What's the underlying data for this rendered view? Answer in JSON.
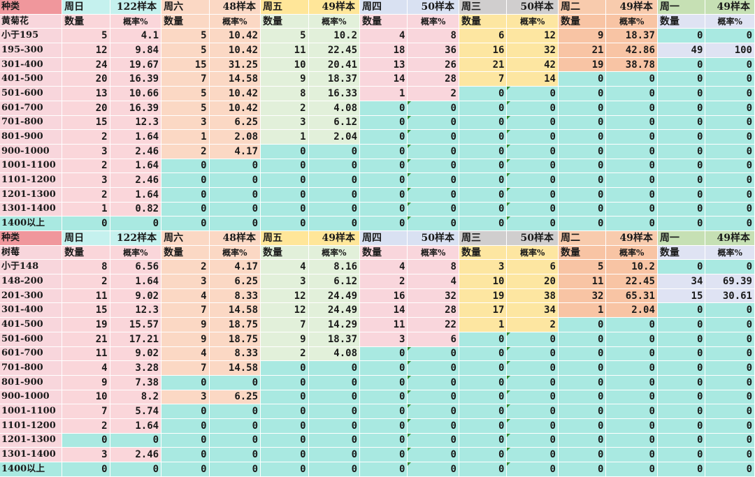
{
  "colors": {
    "species_header": "#f0979c",
    "label_col": "#f8d6dc",
    "zero_cell": "#a9e9e1",
    "days": [
      "#fad6da",
      "#fbd8c4",
      "#e2f0da",
      "#f9d6dc",
      "#fde6a1",
      "#f8c4a4",
      "#dfe3f3"
    ],
    "day_headers": [
      "#c5f1ee",
      "#fbd8c4",
      "#ffe699",
      "#d9e1f2",
      "#d0cece",
      "#f8cbad",
      "#c6e0b4"
    ],
    "marker": "#2e8b2e"
  },
  "sections": [
    {
      "species_label": "种类",
      "species_name": "黄菊花",
      "days": [
        {
          "day": "周日",
          "samples": "122样本"
        },
        {
          "day": "周六",
          "samples": "48样本"
        },
        {
          "day": "周五",
          "samples": "49样本"
        },
        {
          "day": "周四",
          "samples": "50样本"
        },
        {
          "day": "周三",
          "samples": "50样本"
        },
        {
          "day": "周二",
          "samples": "49样本"
        },
        {
          "day": "周一",
          "samples": "49样本"
        }
      ],
      "sub_count": "数量",
      "sub_prob": "概率%",
      "rows": [
        {
          "range": "小于195",
          "values": [
            [
              "5",
              "4.1"
            ],
            [
              "5",
              "10.42"
            ],
            [
              "5",
              "10.2"
            ],
            [
              "4",
              "8"
            ],
            [
              "6",
              "12"
            ],
            [
              "9",
              "18.37"
            ],
            [
              "0",
              "0"
            ]
          ]
        },
        {
          "range": "195-300",
          "values": [
            [
              "12",
              "9.84"
            ],
            [
              "5",
              "10.42"
            ],
            [
              "11",
              "22.45"
            ],
            [
              "18",
              "36"
            ],
            [
              "16",
              "32"
            ],
            [
              "21",
              "42.86"
            ],
            [
              "49",
              "100"
            ]
          ]
        },
        {
          "range": "301-400",
          "values": [
            [
              "24",
              "19.67"
            ],
            [
              "15",
              "31.25"
            ],
            [
              "10",
              "20.41"
            ],
            [
              "13",
              "26"
            ],
            [
              "21",
              "42"
            ],
            [
              "19",
              "38.78"
            ],
            [
              "0",
              "0"
            ]
          ]
        },
        {
          "range": "401-500",
          "values": [
            [
              "20",
              "16.39"
            ],
            [
              "7",
              "14.58"
            ],
            [
              "9",
              "18.37"
            ],
            [
              "14",
              "28"
            ],
            [
              "7",
              "14"
            ],
            [
              "0",
              "0"
            ],
            [
              "0",
              "0"
            ]
          ]
        },
        {
          "range": "501-600",
          "values": [
            [
              "13",
              "10.66"
            ],
            [
              "5",
              "10.42"
            ],
            [
              "8",
              "16.33"
            ],
            [
              "1",
              "2"
            ],
            [
              "0",
              "0"
            ],
            [
              "0",
              "0"
            ],
            [
              "0",
              "0"
            ]
          ]
        },
        {
          "range": "601-700",
          "values": [
            [
              "20",
              "16.39"
            ],
            [
              "5",
              "10.42"
            ],
            [
              "2",
              "4.08"
            ],
            [
              "0",
              "0"
            ],
            [
              "0",
              "0"
            ],
            [
              "0",
              "0"
            ],
            [
              "0",
              "0"
            ]
          ]
        },
        {
          "range": "701-800",
          "values": [
            [
              "15",
              "12.3"
            ],
            [
              "3",
              "6.25"
            ],
            [
              "3",
              "6.12"
            ],
            [
              "0",
              "0"
            ],
            [
              "0",
              "0"
            ],
            [
              "0",
              "0"
            ],
            [
              "0",
              "0"
            ]
          ]
        },
        {
          "range": "801-900",
          "values": [
            [
              "2",
              "1.64"
            ],
            [
              "1",
              "2.08"
            ],
            [
              "1",
              "2.04"
            ],
            [
              "0",
              "0"
            ],
            [
              "0",
              "0"
            ],
            [
              "0",
              "0"
            ],
            [
              "0",
              "0"
            ]
          ]
        },
        {
          "range": "900-1000",
          "values": [
            [
              "3",
              "2.46"
            ],
            [
              "2",
              "4.17"
            ],
            [
              "0",
              "0"
            ],
            [
              "0",
              "0"
            ],
            [
              "0",
              "0"
            ],
            [
              "0",
              "0"
            ],
            [
              "0",
              "0"
            ]
          ]
        },
        {
          "range": "1001-1100",
          "values": [
            [
              "2",
              "1.64"
            ],
            [
              "0",
              "0"
            ],
            [
              "0",
              "0"
            ],
            [
              "0",
              "0"
            ],
            [
              "0",
              "0"
            ],
            [
              "0",
              "0"
            ],
            [
              "0",
              "0"
            ]
          ]
        },
        {
          "range": "1101-1200",
          "values": [
            [
              "3",
              "2.46"
            ],
            [
              "0",
              "0"
            ],
            [
              "0",
              "0"
            ],
            [
              "0",
              "0"
            ],
            [
              "0",
              "0"
            ],
            [
              "0",
              "0"
            ],
            [
              "0",
              "0"
            ]
          ]
        },
        {
          "range": "1201-1300",
          "values": [
            [
              "2",
              "1.64"
            ],
            [
              "0",
              "0"
            ],
            [
              "0",
              "0"
            ],
            [
              "0",
              "0"
            ],
            [
              "0",
              "0"
            ],
            [
              "0",
              "0"
            ],
            [
              "0",
              "0"
            ]
          ]
        },
        {
          "range": "1301-1400",
          "values": [
            [
              "1",
              "0.82"
            ],
            [
              "0",
              "0"
            ],
            [
              "0",
              "0"
            ],
            [
              "0",
              "0"
            ],
            [
              "0",
              "0"
            ],
            [
              "0",
              "0"
            ],
            [
              "0",
              "0"
            ]
          ]
        },
        {
          "range": "1400以上",
          "values": [
            [
              "0",
              "0"
            ],
            [
              "0",
              "0"
            ],
            [
              "0",
              "0"
            ],
            [
              "0",
              "0"
            ],
            [
              "0",
              "0"
            ],
            [
              "0",
              "0"
            ],
            [
              "0",
              "0"
            ]
          ]
        }
      ]
    },
    {
      "species_label": "种类",
      "species_name": "树莓",
      "days": [
        {
          "day": "周日",
          "samples": "122样本"
        },
        {
          "day": "周六",
          "samples": "48样本"
        },
        {
          "day": "周五",
          "samples": "49样本"
        },
        {
          "day": "周四",
          "samples": "50样本"
        },
        {
          "day": "周三",
          "samples": "50样本"
        },
        {
          "day": "周二",
          "samples": "49样本"
        },
        {
          "day": "周一",
          "samples": "49样本"
        }
      ],
      "sub_count": "数量",
      "sub_prob": "概率%",
      "rows": [
        {
          "range": "小于148",
          "values": [
            [
              "8",
              "6.56"
            ],
            [
              "2",
              "4.17"
            ],
            [
              "4",
              "8.16"
            ],
            [
              "4",
              "8"
            ],
            [
              "3",
              "6"
            ],
            [
              "5",
              "10.2"
            ],
            [
              "0",
              "0"
            ]
          ]
        },
        {
          "range": "148-200",
          "values": [
            [
              "2",
              "1.64"
            ],
            [
              "3",
              "6.25"
            ],
            [
              "3",
              "6.12"
            ],
            [
              "2",
              "4"
            ],
            [
              "10",
              "20"
            ],
            [
              "11",
              "22.45"
            ],
            [
              "34",
              "69.39"
            ]
          ]
        },
        {
          "range": "201-300",
          "values": [
            [
              "11",
              "9.02"
            ],
            [
              "4",
              "8.33"
            ],
            [
              "12",
              "24.49"
            ],
            [
              "16",
              "32"
            ],
            [
              "19",
              "38"
            ],
            [
              "32",
              "65.31"
            ],
            [
              "15",
              "30.61"
            ]
          ]
        },
        {
          "range": "301-400",
          "values": [
            [
              "15",
              "12.3"
            ],
            [
              "7",
              "14.58"
            ],
            [
              "12",
              "24.49"
            ],
            [
              "14",
              "28"
            ],
            [
              "17",
              "34"
            ],
            [
              "1",
              "2.04"
            ],
            [
              "0",
              "0"
            ]
          ]
        },
        {
          "range": "401-500",
          "values": [
            [
              "19",
              "15.57"
            ],
            [
              "9",
              "18.75"
            ],
            [
              "7",
              "14.29"
            ],
            [
              "11",
              "22"
            ],
            [
              "1",
              "2"
            ],
            [
              "0",
              "0"
            ],
            [
              "0",
              "0"
            ]
          ]
        },
        {
          "range": "501-600",
          "values": [
            [
              "21",
              "17.21"
            ],
            [
              "9",
              "18.75"
            ],
            [
              "9",
              "18.37"
            ],
            [
              "3",
              "6"
            ],
            [
              "0",
              "0"
            ],
            [
              "0",
              "0"
            ],
            [
              "0",
              "0"
            ]
          ]
        },
        {
          "range": "601-700",
          "values": [
            [
              "11",
              "9.02"
            ],
            [
              "4",
              "8.33"
            ],
            [
              "2",
              "4.08"
            ],
            [
              "0",
              "0"
            ],
            [
              "0",
              "0"
            ],
            [
              "0",
              "0"
            ],
            [
              "0",
              "0"
            ]
          ]
        },
        {
          "range": "701-800",
          "values": [
            [
              "4",
              "3.28"
            ],
            [
              "7",
              "14.58"
            ],
            [
              "0",
              "0"
            ],
            [
              "0",
              "0"
            ],
            [
              "0",
              "0"
            ],
            [
              "0",
              "0"
            ],
            [
              "0",
              "0"
            ]
          ]
        },
        {
          "range": "801-900",
          "values": [
            [
              "9",
              "7.38"
            ],
            [
              "0",
              "0"
            ],
            [
              "0",
              "0"
            ],
            [
              "0",
              "0"
            ],
            [
              "0",
              "0"
            ],
            [
              "0",
              "0"
            ],
            [
              "0",
              "0"
            ]
          ]
        },
        {
          "range": "900-1000",
          "values": [
            [
              "10",
              "8.2"
            ],
            [
              "3",
              "6.25"
            ],
            [
              "0",
              "0"
            ],
            [
              "0",
              "0"
            ],
            [
              "0",
              "0"
            ],
            [
              "0",
              "0"
            ],
            [
              "0",
              "0"
            ]
          ]
        },
        {
          "range": "1001-1100",
          "values": [
            [
              "7",
              "5.74"
            ],
            [
              "0",
              "0"
            ],
            [
              "0",
              "0"
            ],
            [
              "0",
              "0"
            ],
            [
              "0",
              "0"
            ],
            [
              "0",
              "0"
            ],
            [
              "0",
              "0"
            ]
          ]
        },
        {
          "range": "1101-1200",
          "values": [
            [
              "2",
              "1.64"
            ],
            [
              "0",
              "0"
            ],
            [
              "0",
              "0"
            ],
            [
              "0",
              "0"
            ],
            [
              "0",
              "0"
            ],
            [
              "0",
              "0"
            ],
            [
              "0",
              "0"
            ]
          ]
        },
        {
          "range": "1201-1300",
          "values": [
            [
              "0",
              "0"
            ],
            [
              "0",
              "0"
            ],
            [
              "0",
              "0"
            ],
            [
              "0",
              "0"
            ],
            [
              "0",
              "0"
            ],
            [
              "0",
              "0"
            ],
            [
              "0",
              "0"
            ]
          ]
        },
        {
          "range": "1301-1400",
          "values": [
            [
              "3",
              "2.46"
            ],
            [
              "0",
              "0"
            ],
            [
              "0",
              "0"
            ],
            [
              "0",
              "0"
            ],
            [
              "0",
              "0"
            ],
            [
              "0",
              "0"
            ],
            [
              "0",
              "0"
            ]
          ]
        },
        {
          "range": "1400以上",
          "values": [
            [
              "0",
              "0"
            ],
            [
              "0",
              "0"
            ],
            [
              "0",
              "0"
            ],
            [
              "0",
              "0"
            ],
            [
              "0",
              "0"
            ],
            [
              "0",
              "0"
            ],
            [
              "0",
              "0"
            ]
          ]
        }
      ]
    }
  ]
}
